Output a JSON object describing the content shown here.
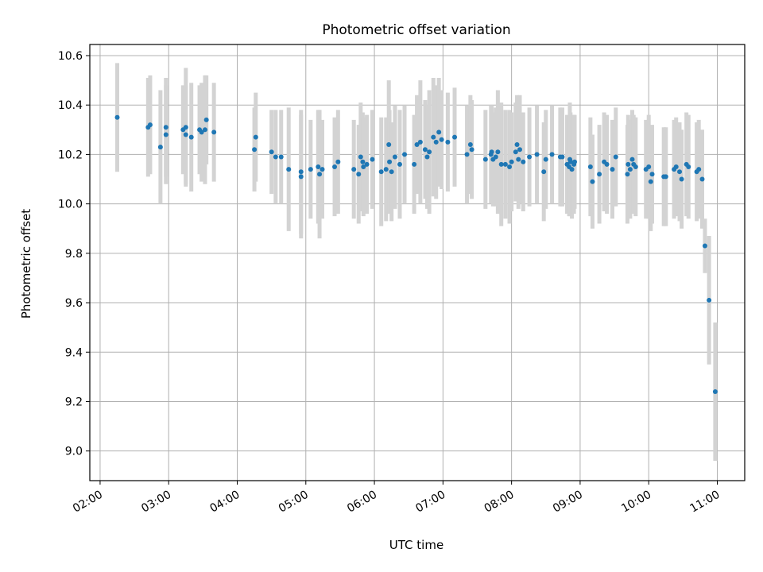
{
  "chart_data": {
    "type": "scatter",
    "title": "Photometric offset variation",
    "xlabel": "UTC time",
    "ylabel": "Photometric offset",
    "xlim_hours": [
      1.85,
      11.4
    ],
    "ylim": [
      8.88,
      10.645
    ],
    "x_ticks": [
      {
        "h": 2,
        "label": "02:00"
      },
      {
        "h": 3,
        "label": "03:00"
      },
      {
        "h": 4,
        "label": "04:00"
      },
      {
        "h": 5,
        "label": "05:00"
      },
      {
        "h": 6,
        "label": "06:00"
      },
      {
        "h": 7,
        "label": "07:00"
      },
      {
        "h": 8,
        "label": "08:00"
      },
      {
        "h": 9,
        "label": "09:00"
      },
      {
        "h": 10,
        "label": "10:00"
      },
      {
        "h": 11,
        "label": "11:00"
      }
    ],
    "y_ticks": [
      {
        "v": 9.0,
        "label": "9.0"
      },
      {
        "v": 9.2,
        "label": "9.2"
      },
      {
        "v": 9.4,
        "label": "9.4"
      },
      {
        "v": 9.6,
        "label": "9.6"
      },
      {
        "v": 9.8,
        "label": "9.8"
      },
      {
        "v": 10.0,
        "label": "10.0"
      },
      {
        "v": 10.2,
        "label": "10.2"
      },
      {
        "v": 10.4,
        "label": "10.4"
      },
      {
        "v": 10.6,
        "label": "10.6"
      }
    ],
    "grid": true,
    "colors": {
      "point": "#1f77b4",
      "errorbar": "#d3d3d3",
      "grid": "#b0b0b0"
    },
    "series": [
      {
        "x_hours": [
          2.25,
          2.7,
          2.73,
          2.88,
          2.96,
          2.96,
          3.21,
          3.25,
          3.25,
          3.33,
          3.45,
          3.48,
          3.53,
          3.55,
          3.66,
          4.25,
          4.27,
          4.5,
          4.56,
          4.64,
          4.75,
          4.93,
          4.93,
          5.07,
          5.18,
          5.2,
          5.24,
          5.42,
          5.47,
          5.7,
          5.77,
          5.8,
          5.83,
          5.84,
          5.89,
          5.97,
          6.1,
          6.17,
          6.21,
          6.22,
          6.25,
          6.3,
          6.37,
          6.44,
          6.58,
          6.62,
          6.67,
          6.74,
          6.77,
          6.8,
          6.86,
          6.9,
          6.94,
          6.98,
          7.07,
          7.17,
          7.35,
          7.4,
          7.42,
          7.62,
          7.7,
          7.71,
          7.73,
          7.77,
          7.8,
          7.85,
          7.91,
          7.97,
          8.0,
          8.06,
          8.08,
          8.1,
          8.12,
          8.17,
          8.26,
          8.37,
          8.47,
          8.5,
          8.59,
          8.71,
          8.74,
          8.81,
          8.84,
          8.85,
          8.86,
          8.88,
          8.91,
          8.92,
          9.15,
          9.18,
          9.28,
          9.35,
          9.39,
          9.47,
          9.52,
          9.69,
          9.7,
          9.73,
          9.76,
          9.78,
          9.81,
          9.96,
          10.0,
          10.03,
          10.05,
          10.22,
          10.25,
          10.37,
          10.4,
          10.45,
          10.48,
          10.55,
          10.58,
          10.7,
          10.73,
          10.78,
          10.82,
          10.88,
          10.97
        ],
        "y": [
          10.35,
          10.31,
          10.32,
          10.23,
          10.31,
          10.28,
          10.3,
          10.31,
          10.28,
          10.27,
          10.3,
          10.29,
          10.3,
          10.34,
          10.29,
          10.22,
          10.27,
          10.21,
          10.19,
          10.19,
          10.14,
          10.13,
          10.11,
          10.14,
          10.15,
          10.12,
          10.14,
          10.15,
          10.17,
          10.14,
          10.12,
          10.19,
          10.17,
          10.15,
          10.16,
          10.18,
          10.13,
          10.14,
          10.24,
          10.17,
          10.13,
          10.19,
          10.16,
          10.2,
          10.16,
          10.24,
          10.25,
          10.22,
          10.19,
          10.21,
          10.27,
          10.25,
          10.29,
          10.26,
          10.25,
          10.27,
          10.2,
          10.24,
          10.22,
          10.18,
          10.2,
          10.21,
          10.18,
          10.19,
          10.21,
          10.16,
          10.16,
          10.15,
          10.17,
          10.21,
          10.24,
          10.18,
          10.22,
          10.17,
          10.19,
          10.2,
          10.13,
          10.18,
          10.2,
          10.19,
          10.19,
          10.16,
          10.15,
          10.18,
          10.17,
          10.14,
          10.16,
          10.17,
          10.15,
          10.09,
          10.12,
          10.17,
          10.16,
          10.14,
          10.19,
          10.12,
          10.16,
          10.14,
          10.18,
          10.16,
          10.15,
          10.14,
          10.15,
          10.09,
          10.12,
          10.11,
          10.11,
          10.14,
          10.15,
          10.13,
          10.1,
          10.16,
          10.15,
          10.13,
          10.14,
          10.1,
          9.83,
          9.61,
          9.24
        ],
        "yerr": [
          0.22,
          0.2,
          0.2,
          0.23,
          0.2,
          0.2,
          0.18,
          0.24,
          0.2,
          0.22,
          0.18,
          0.2,
          0.22,
          0.18,
          0.2,
          0.17,
          0.18,
          0.17,
          0.19,
          0.19,
          0.25,
          0.25,
          0.25,
          0.2,
          0.23,
          0.26,
          0.2,
          0.2,
          0.21,
          0.2,
          0.2,
          0.22,
          0.2,
          0.2,
          0.2,
          0.2,
          0.22,
          0.21,
          0.26,
          0.21,
          0.2,
          0.21,
          0.22,
          0.2,
          0.2,
          0.2,
          0.25,
          0.2,
          0.21,
          0.25,
          0.24,
          0.23,
          0.22,
          0.2,
          0.2,
          0.2,
          0.2,
          0.2,
          0.2,
          0.2,
          0.2,
          0.19,
          0.19,
          0.2,
          0.25,
          0.25,
          0.22,
          0.23,
          0.2,
          0.2,
          0.2,
          0.2,
          0.22,
          0.2,
          0.2,
          0.2,
          0.2,
          0.2,
          0.2,
          0.2,
          0.2,
          0.2,
          0.2,
          0.23,
          0.2,
          0.2,
          0.2,
          0.19,
          0.2,
          0.19,
          0.2,
          0.2,
          0.2,
          0.2,
          0.2,
          0.2,
          0.2,
          0.2,
          0.2,
          0.2,
          0.2,
          0.2,
          0.21,
          0.2,
          0.2,
          0.2,
          0.2,
          0.2,
          0.2,
          0.2,
          0.2,
          0.21,
          0.21,
          0.2,
          0.2,
          0.2,
          0.11,
          0.26,
          0.28
        ]
      }
    ]
  }
}
